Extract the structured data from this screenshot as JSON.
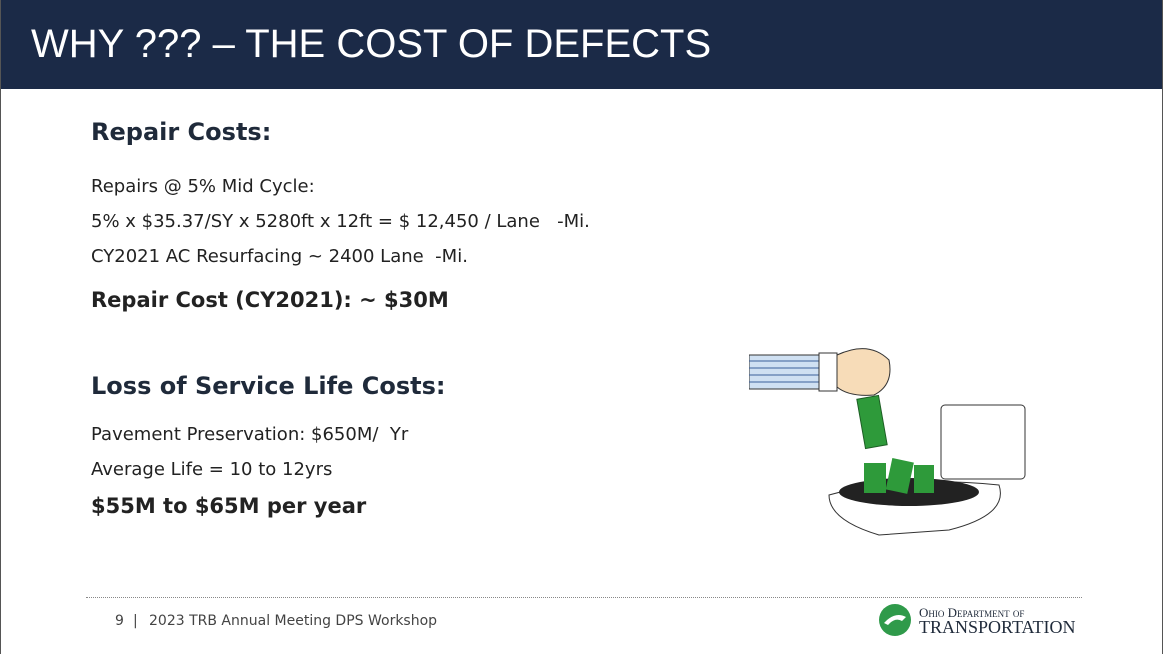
{
  "header": {
    "title": "WHY ??? – THE COST OF DEFECTS"
  },
  "sections": [
    {
      "heading": "Repair Costs:",
      "lines": [
        "Repairs @ 5% Mid Cycle:",
        "5% x $35.37/SY x 5280ft x 12ft = $ 12,450 / Lane   -Mi.",
        "CY2021 AC Resurfacing ~ 2400 Lane  -Mi."
      ],
      "emphasis": "Repair Cost (CY2021): ~ $30M"
    },
    {
      "heading": "Loss of Service Life Costs:",
      "lines": [
        "Pavement Preservation: $650M/  Yr",
        "Average Life = 10 to 12yrs"
      ],
      "emphasis": "$55M to $65M per year"
    }
  ],
  "footer": {
    "page": "9",
    "separator": "|",
    "text": "2023 TRB Annual Meeting DPS Workshop",
    "logo_line1": "Ohio Department of",
    "logo_line2": "Transportation"
  }
}
